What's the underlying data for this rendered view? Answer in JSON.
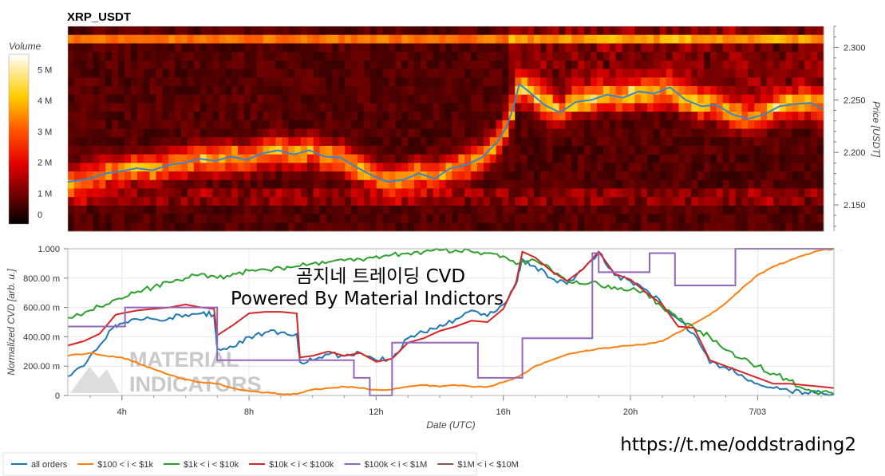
{
  "chart_data": [
    {
      "type": "heatmap",
      "title": "XRP_USDT",
      "ylabel": "Price [USDT]",
      "ylim": [
        2.125,
        2.32
      ],
      "yticks": [
        "2.150",
        "2.200",
        "2.250",
        "2.300"
      ],
      "colorbar": {
        "label": "Volume",
        "ticks": [
          "0",
          "1 M",
          "2 M",
          "3 M",
          "4 M",
          "5 M"
        ],
        "range": [
          0,
          5.5
        ]
      },
      "xlim": [
        2.3,
        26.4
      ],
      "price_line": {
        "x": [
          2.3,
          3.0,
          3.5,
          4.0,
          4.5,
          5.0,
          5.5,
          6.0,
          6.5,
          7.0,
          7.5,
          8.0,
          8.5,
          9.0,
          9.5,
          10.0,
          10.5,
          11.0,
          11.5,
          12.0,
          12.5,
          13.0,
          13.5,
          14.0,
          14.5,
          15.0,
          15.5,
          16.0,
          16.3,
          16.5,
          16.7,
          17.0,
          17.5,
          18.0,
          18.5,
          19.0,
          19.5,
          20.0,
          20.5,
          21.0,
          21.5,
          22.0,
          22.5,
          23.0,
          23.5,
          24.0,
          24.5,
          25.0,
          25.5,
          26.0,
          26.4
        ],
        "y": [
          2.172,
          2.175,
          2.18,
          2.182,
          2.185,
          2.183,
          2.188,
          2.19,
          2.194,
          2.192,
          2.196,
          2.193,
          2.199,
          2.202,
          2.198,
          2.202,
          2.196,
          2.195,
          2.186,
          2.178,
          2.172,
          2.174,
          2.18,
          2.175,
          2.185,
          2.188,
          2.195,
          2.21,
          2.225,
          2.242,
          2.265,
          2.258,
          2.245,
          2.238,
          2.248,
          2.25,
          2.255,
          2.252,
          2.258,
          2.256,
          2.262,
          2.25,
          2.244,
          2.245,
          2.236,
          2.232,
          2.236,
          2.244,
          2.246,
          2.247,
          2.241
        ]
      }
    },
    {
      "type": "line",
      "xlabel": "Date (UTC)",
      "ylabel": "Normalized CVD [arb. u.]",
      "ylim": [
        0,
        1
      ],
      "xlim": [
        2.3,
        26.4
      ],
      "xticks": [
        {
          "v": 4,
          "label": "4h"
        },
        {
          "v": 8,
          "label": "8h"
        },
        {
          "v": 12,
          "label": "12h"
        },
        {
          "v": 16,
          "label": "16h"
        },
        {
          "v": 20,
          "label": "20h"
        },
        {
          "v": 24,
          "label": "7/03"
        }
      ],
      "yticks": [
        {
          "v": 0,
          "label": "0"
        },
        {
          "v": 0.2,
          "label": "200.00 m"
        },
        {
          "v": 0.4,
          "label": "400.00 m"
        },
        {
          "v": 0.6,
          "label": "600.00 m"
        },
        {
          "v": 0.8,
          "label": "800.00 m"
        },
        {
          "v": 1,
          "label": "1.000"
        }
      ],
      "series": [
        {
          "name": "all orders",
          "color": "#1f77b4",
          "x": [
            2.3,
            2.8,
            3.3,
            3.8,
            4.0,
            4.5,
            5.0,
            5.5,
            6.0,
            6.5,
            6.9,
            7.0,
            7.5,
            8.0,
            8.5,
            9.0,
            9.5,
            9.6,
            10.0,
            10.5,
            11.0,
            11.5,
            12.0,
            12.5,
            13.0,
            13.5,
            14.0,
            14.5,
            15.0,
            15.5,
            16.0,
            16.4,
            16.6,
            17.0,
            17.5,
            18.0,
            18.5,
            19.0,
            19.5,
            20.0,
            20.5,
            21.0,
            21.5,
            22.0,
            22.5,
            23.0,
            23.5,
            24.0,
            24.5,
            25.0,
            25.5,
            26.0,
            26.4
          ],
          "y": [
            0.13,
            0.2,
            0.34,
            0.48,
            0.49,
            0.52,
            0.52,
            0.53,
            0.55,
            0.56,
            0.55,
            0.32,
            0.33,
            0.4,
            0.43,
            0.43,
            0.42,
            0.23,
            0.24,
            0.28,
            0.27,
            0.29,
            0.24,
            0.25,
            0.39,
            0.43,
            0.48,
            0.52,
            0.58,
            0.54,
            0.62,
            0.76,
            0.93,
            0.88,
            0.8,
            0.76,
            0.86,
            0.98,
            0.82,
            0.78,
            0.72,
            0.62,
            0.52,
            0.42,
            0.22,
            0.19,
            0.14,
            0.08,
            0.05,
            0.03,
            0.02,
            0.02,
            0.01
          ]
        },
        {
          "name": "$100 < i < $1k",
          "color": "#ff7f0e",
          "x": [
            2.3,
            3.0,
            3.5,
            4.0,
            4.5,
            5.0,
            5.5,
            6.0,
            6.5,
            7.0,
            7.5,
            8.0,
            8.5,
            9.0,
            9.5,
            10.0,
            10.5,
            11.0,
            11.5,
            12.0,
            12.5,
            13.0,
            13.5,
            14.0,
            14.5,
            15.0,
            15.5,
            16.0,
            16.5,
            17.0,
            17.5,
            18.0,
            18.5,
            19.0,
            19.5,
            20.0,
            20.5,
            21.0,
            21.5,
            22.0,
            22.5,
            23.0,
            23.5,
            24.0,
            24.5,
            25.0,
            25.5,
            26.0,
            26.4
          ],
          "y": [
            0.27,
            0.29,
            0.27,
            0.26,
            0.22,
            0.18,
            0.14,
            0.11,
            0.09,
            0.08,
            0.05,
            0.03,
            0.02,
            0.01,
            0.01,
            0.04,
            0.05,
            0.06,
            0.05,
            0.04,
            0.04,
            0.06,
            0.07,
            0.06,
            0.07,
            0.06,
            0.06,
            0.09,
            0.13,
            0.2,
            0.24,
            0.28,
            0.3,
            0.32,
            0.33,
            0.34,
            0.35,
            0.37,
            0.43,
            0.49,
            0.55,
            0.63,
            0.73,
            0.82,
            0.88,
            0.92,
            0.96,
            0.99,
            1.0
          ]
        },
        {
          "name": "$1k < i < $10k",
          "color": "#2ca02c",
          "x": [
            2.3,
            3.0,
            3.5,
            4.0,
            4.5,
            5.0,
            5.5,
            6.0,
            6.5,
            7.0,
            7.5,
            8.0,
            8.5,
            9.0,
            9.5,
            10.0,
            10.5,
            11.0,
            11.5,
            12.0,
            12.5,
            13.0,
            13.5,
            14.0,
            14.5,
            15.0,
            15.5,
            16.0,
            16.5,
            17.0,
            17.5,
            18.0,
            18.5,
            19.0,
            19.5,
            20.0,
            20.5,
            21.0,
            21.5,
            22.0,
            22.5,
            23.0,
            23.5,
            24.0,
            24.5,
            25.0,
            25.5,
            26.0,
            26.4
          ],
          "y": [
            0.53,
            0.58,
            0.62,
            0.66,
            0.71,
            0.74,
            0.77,
            0.8,
            0.83,
            0.8,
            0.83,
            0.85,
            0.86,
            0.87,
            0.88,
            0.9,
            0.91,
            0.92,
            0.93,
            0.95,
            0.96,
            0.97,
            0.98,
            0.99,
            0.99,
            0.98,
            0.97,
            0.95,
            0.9,
            0.92,
            0.86,
            0.78,
            0.76,
            0.76,
            0.74,
            0.72,
            0.7,
            0.6,
            0.52,
            0.46,
            0.4,
            0.31,
            0.25,
            0.2,
            0.15,
            0.1,
            0.04,
            0.02,
            0.01
          ]
        },
        {
          "name": "$10k < i < $100k",
          "color": "#d62728",
          "x": [
            2.3,
            2.8,
            3.3,
            3.8,
            4.0,
            4.5,
            5.0,
            5.5,
            6.0,
            6.5,
            6.9,
            7.0,
            7.5,
            8.0,
            8.5,
            9.0,
            9.5,
            9.6,
            10.0,
            10.5,
            11.0,
            11.5,
            12.0,
            12.5,
            13.0,
            13.5,
            14.0,
            14.5,
            15.0,
            15.5,
            16.0,
            16.4,
            16.6,
            17.0,
            17.5,
            18.0,
            18.5,
            19.0,
            19.5,
            20.0,
            20.5,
            21.0,
            21.5,
            22.0,
            22.5,
            23.0,
            23.5,
            24.0,
            24.5,
            25.0,
            25.5,
            26.0,
            26.4
          ],
          "y": [
            0.34,
            0.37,
            0.42,
            0.55,
            0.56,
            0.58,
            0.59,
            0.6,
            0.62,
            0.6,
            0.59,
            0.41,
            0.48,
            0.56,
            0.57,
            0.57,
            0.56,
            0.26,
            0.27,
            0.3,
            0.27,
            0.29,
            0.23,
            0.25,
            0.36,
            0.39,
            0.44,
            0.47,
            0.51,
            0.5,
            0.59,
            0.77,
            0.98,
            0.94,
            0.85,
            0.78,
            0.86,
            0.98,
            0.83,
            0.79,
            0.7,
            0.62,
            0.47,
            0.46,
            0.24,
            0.2,
            0.16,
            0.12,
            0.08,
            0.08,
            0.07,
            0.06,
            0.05
          ]
        },
        {
          "name": "$100k < i < $1M",
          "color": "#9467bd",
          "x": [
            2.3,
            3.5,
            3.8,
            3.8,
            4.1,
            4.1,
            7.0,
            7.0,
            9.6,
            9.6,
            11.3,
            11.3,
            11.8,
            11.8,
            12.5,
            12.5,
            15.2,
            15.2,
            15.7,
            15.7,
            16.6,
            16.6,
            17.0,
            17.0,
            18.0,
            18.0,
            18.8,
            18.8,
            19.0,
            19.0,
            19.4,
            19.4,
            20.0,
            20.0,
            20.6,
            20.6,
            21.4,
            21.4,
            23.3,
            23.3,
            26.4
          ],
          "y": [
            0.47,
            0.47,
            0.47,
            0.47,
            0.47,
            0.6,
            0.6,
            0.24,
            0.24,
            0.24,
            0.24,
            0.12,
            0.12,
            0.0,
            0.0,
            0.36,
            0.36,
            0.12,
            0.12,
            0.12,
            0.12,
            0.39,
            0.39,
            0.39,
            0.39,
            0.39,
            0.39,
            0.97,
            0.97,
            0.84,
            0.84,
            0.84,
            0.84,
            0.84,
            0.84,
            0.97,
            0.97,
            0.75,
            0.75,
            1.0,
            1.0
          ]
        },
        {
          "name": "$1M < i < $10M",
          "color": "#8c564b",
          "x": [],
          "y": []
        }
      ]
    }
  ],
  "overlay": {
    "title_line1": "곰지네 트레이딩 CVD",
    "title_line2": "Powered By Material Indictors",
    "telegram": "https://t.me/oddstrading2",
    "watermark_line1": "MATERIAL",
    "watermark_line2": "INDICATORS"
  }
}
